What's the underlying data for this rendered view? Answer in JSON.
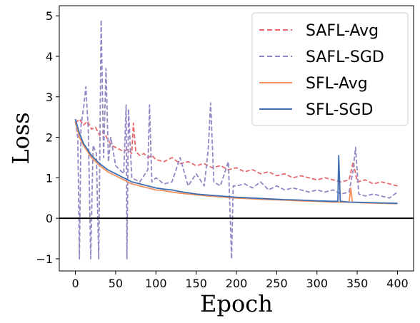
{
  "chart_data": {
    "type": "line",
    "title": "",
    "xlabel": "Epoch",
    "ylabel": "Loss",
    "xlim": [
      -20,
      420
    ],
    "ylim": [
      -1.3,
      5.25
    ],
    "xticks": [
      0,
      50,
      100,
      150,
      200,
      250,
      300,
      350,
      400
    ],
    "yticks": [
      -1,
      0,
      1,
      2,
      3,
      4,
      5
    ],
    "grid": false,
    "hline": {
      "y": 0,
      "color": "#000000"
    },
    "legend": {
      "position": "top-right"
    },
    "series": [
      {
        "name": "SAFL-Avg",
        "color": "#e8686c",
        "style": "dashed",
        "x": [
          0,
          5,
          10,
          15,
          20,
          25,
          30,
          35,
          40,
          45,
          50,
          55,
          60,
          65,
          70,
          72,
          75,
          80,
          85,
          90,
          95,
          100,
          110,
          120,
          130,
          140,
          150,
          160,
          170,
          180,
          190,
          200,
          210,
          220,
          230,
          240,
          250,
          260,
          270,
          280,
          290,
          300,
          310,
          320,
          330,
          340,
          345,
          350,
          360,
          370,
          380,
          390,
          400
        ],
        "y": [
          2.35,
          2.45,
          2.3,
          2.4,
          2.2,
          2.25,
          2.05,
          2.15,
          1.95,
          1.8,
          1.75,
          1.7,
          1.65,
          1.7,
          1.6,
          2.35,
          1.65,
          1.55,
          1.6,
          1.5,
          1.55,
          1.45,
          1.4,
          1.5,
          1.35,
          1.4,
          1.3,
          1.35,
          1.25,
          1.3,
          1.2,
          1.25,
          1.15,
          1.2,
          1.1,
          1.15,
          1.05,
          1.1,
          1.0,
          1.05,
          1.0,
          0.95,
          1.0,
          0.95,
          0.9,
          0.95,
          1.4,
          0.9,
          0.95,
          0.85,
          0.9,
          0.85,
          0.8
        ]
      },
      {
        "name": "SAFL-SGD",
        "color": "#9585c4",
        "style": "dashed",
        "x": [
          0,
          3,
          5,
          7,
          10,
          13,
          16,
          19,
          22,
          26,
          29,
          32,
          35,
          38,
          41,
          44,
          50,
          55,
          60,
          63,
          64,
          66,
          70,
          80,
          90,
          92,
          95,
          100,
          110,
          120,
          130,
          140,
          150,
          160,
          165,
          168,
          172,
          180,
          190,
          194,
          196,
          200,
          210,
          220,
          230,
          240,
          250,
          260,
          270,
          280,
          290,
          300,
          310,
          320,
          330,
          340,
          345,
          348,
          352,
          360,
          370,
          380,
          390,
          400
        ],
        "y": [
          2.4,
          2.0,
          -1.0,
          2.3,
          2.7,
          3.25,
          2.2,
          -1.0,
          1.8,
          1.6,
          -1.0,
          4.9,
          1.5,
          3.7,
          1.4,
          2.0,
          1.3,
          1.2,
          1.1,
          2.8,
          -1.0,
          2.7,
          1.0,
          0.9,
          1.2,
          2.8,
          0.9,
          1.0,
          0.85,
          0.9,
          1.5,
          0.8,
          1.1,
          0.8,
          1.7,
          2.85,
          0.9,
          0.8,
          1.4,
          -1.0,
          0.8,
          0.8,
          0.85,
          0.75,
          0.9,
          0.7,
          0.8,
          0.7,
          0.75,
          0.7,
          0.65,
          0.7,
          0.65,
          0.7,
          0.6,
          0.65,
          1.2,
          1.75,
          0.6,
          0.55,
          0.6,
          0.55,
          0.5,
          0.65
        ]
      },
      {
        "name": "SFL-Avg",
        "color": "#f4915f",
        "style": "solid",
        "x": [
          0,
          5,
          10,
          15,
          20,
          30,
          40,
          50,
          60,
          70,
          80,
          90,
          100,
          110,
          120,
          130,
          140,
          150,
          160,
          180,
          200,
          220,
          240,
          260,
          280,
          300,
          320,
          340,
          342,
          344,
          360,
          380,
          400
        ],
        "y": [
          2.4,
          2.0,
          1.8,
          1.65,
          1.5,
          1.3,
          1.15,
          1.05,
          0.95,
          0.85,
          0.8,
          0.75,
          0.7,
          0.68,
          0.65,
          0.62,
          0.6,
          0.58,
          0.56,
          0.53,
          0.5,
          0.48,
          0.46,
          0.45,
          0.43,
          0.42,
          0.4,
          0.4,
          0.75,
          0.4,
          0.38,
          0.37,
          0.36
        ]
      },
      {
        "name": "SFL-SGD",
        "color": "#3e6db0",
        "style": "solid",
        "x": [
          0,
          5,
          10,
          15,
          20,
          30,
          40,
          50,
          60,
          70,
          80,
          90,
          100,
          110,
          120,
          130,
          140,
          150,
          160,
          180,
          200,
          220,
          240,
          260,
          280,
          300,
          320,
          326,
          327,
          329,
          340,
          360,
          380,
          400
        ],
        "y": [
          2.45,
          2.1,
          1.85,
          1.7,
          1.55,
          1.35,
          1.2,
          1.1,
          1.0,
          0.9,
          0.85,
          0.8,
          0.75,
          0.72,
          0.7,
          0.66,
          0.63,
          0.6,
          0.58,
          0.55,
          0.52,
          0.5,
          0.48,
          0.46,
          0.45,
          0.43,
          0.42,
          0.42,
          1.55,
          0.42,
          0.4,
          0.39,
          0.38,
          0.37
        ]
      }
    ]
  }
}
